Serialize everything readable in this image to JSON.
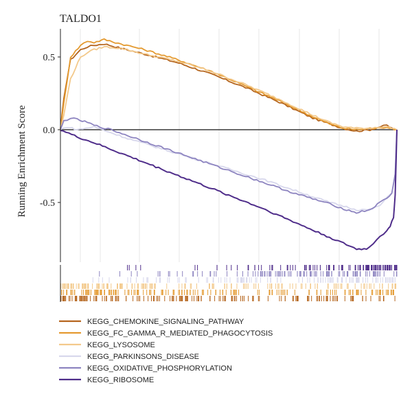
{
  "chart_data": {
    "type": "line",
    "title": "TALDO1",
    "xlabel": "",
    "ylabel": "Running Enrichment Score",
    "xlim": [
      0,
      1
    ],
    "ylim": [
      -0.85,
      0.67
    ],
    "yticks": [
      {
        "value": 0.5,
        "label": "0.5"
      },
      {
        "value": 0.0,
        "label": "0.0"
      },
      {
        "value": -0.5,
        "label": "-0.5"
      }
    ],
    "grid": true,
    "legend_position": "bottom",
    "series": [
      {
        "name": "KEGG_CHEMOKINE_SIGNALING_PATHWAY",
        "color": "#b5651d",
        "x": [
          0,
          0.01,
          0.03,
          0.06,
          0.08,
          0.1,
          0.13,
          0.18,
          0.25,
          0.35,
          0.45,
          0.55,
          0.65,
          0.75,
          0.8,
          0.84,
          0.88,
          0.92,
          0.95,
          0.97,
          0.985,
          1.0
        ],
        "y": [
          0,
          0.22,
          0.48,
          0.55,
          0.57,
          0.58,
          0.59,
          0.56,
          0.52,
          0.46,
          0.38,
          0.29,
          0.19,
          0.08,
          0.04,
          0.01,
          -0.01,
          0.0,
          0.02,
          0.03,
          0.01,
          0.0
        ]
      },
      {
        "name": "KEGG_FC_GAMMA_R_MEDIATED_PHAGOCYTOSIS",
        "color": "#e49a30",
        "x": [
          0,
          0.01,
          0.03,
          0.06,
          0.08,
          0.1,
          0.13,
          0.18,
          0.25,
          0.35,
          0.45,
          0.55,
          0.65,
          0.75,
          0.8,
          0.84,
          0.88,
          0.92,
          0.95,
          0.97,
          0.985,
          1.0
        ],
        "y": [
          0,
          0.18,
          0.5,
          0.58,
          0.61,
          0.6,
          0.62,
          0.59,
          0.55,
          0.48,
          0.4,
          0.3,
          0.2,
          0.09,
          0.04,
          0.01,
          0.0,
          0.01,
          0.01,
          0.02,
          0.01,
          0.0
        ]
      },
      {
        "name": "KEGG_LYSOSOME",
        "color": "#f3c98b",
        "x": [
          0,
          0.01,
          0.03,
          0.06,
          0.08,
          0.1,
          0.13,
          0.18,
          0.25,
          0.35,
          0.45,
          0.55,
          0.65,
          0.75,
          0.8,
          0.84,
          0.88,
          0.92,
          0.95,
          0.97,
          0.985,
          1.0
        ],
        "y": [
          0,
          0.1,
          0.35,
          0.5,
          0.53,
          0.55,
          0.57,
          0.56,
          0.52,
          0.47,
          0.4,
          0.31,
          0.21,
          0.1,
          0.05,
          0.02,
          0.01,
          0.01,
          0.02,
          0.02,
          0.01,
          0.0
        ]
      },
      {
        "name": "KEGG_PARKINSONS_DISEASE",
        "color": "#d7d7ec",
        "x": [
          0,
          0.02,
          0.05,
          0.1,
          0.15,
          0.2,
          0.3,
          0.4,
          0.5,
          0.6,
          0.7,
          0.8,
          0.85,
          0.88,
          0.92,
          0.95,
          0.97,
          0.985,
          0.995,
          1.0
        ],
        "y": [
          0,
          0.02,
          0.0,
          0.02,
          -0.02,
          -0.06,
          -0.13,
          -0.2,
          -0.27,
          -0.34,
          -0.42,
          -0.5,
          -0.53,
          -0.55,
          -0.55,
          -0.52,
          -0.47,
          -0.43,
          -0.3,
          0.0
        ]
      },
      {
        "name": "KEGG_OXIDATIVE_PHOSPHORYLATION",
        "color": "#8d84c0",
        "x": [
          0,
          0.01,
          0.03,
          0.05,
          0.08,
          0.1,
          0.15,
          0.2,
          0.3,
          0.4,
          0.5,
          0.6,
          0.7,
          0.8,
          0.85,
          0.88,
          0.92,
          0.95,
          0.97,
          0.985,
          0.995,
          1.0
        ],
        "y": [
          0,
          0.06,
          0.08,
          0.07,
          0.05,
          0.03,
          0.0,
          -0.04,
          -0.12,
          -0.2,
          -0.28,
          -0.36,
          -0.44,
          -0.51,
          -0.55,
          -0.57,
          -0.55,
          -0.5,
          -0.47,
          -0.44,
          -0.3,
          0.0
        ]
      },
      {
        "name": "KEGG_RIBOSOME",
        "color": "#4f2d8a",
        "x": [
          0,
          0.05,
          0.1,
          0.2,
          0.3,
          0.4,
          0.5,
          0.6,
          0.7,
          0.8,
          0.85,
          0.88,
          0.91,
          0.93,
          0.95,
          0.97,
          0.98,
          0.99,
          0.995,
          1.0
        ],
        "y": [
          0,
          -0.05,
          -0.09,
          -0.18,
          -0.27,
          -0.36,
          -0.45,
          -0.54,
          -0.64,
          -0.74,
          -0.79,
          -0.82,
          -0.82,
          -0.78,
          -0.73,
          -0.7,
          -0.66,
          -0.6,
          -0.45,
          0.0
        ]
      }
    ]
  }
}
